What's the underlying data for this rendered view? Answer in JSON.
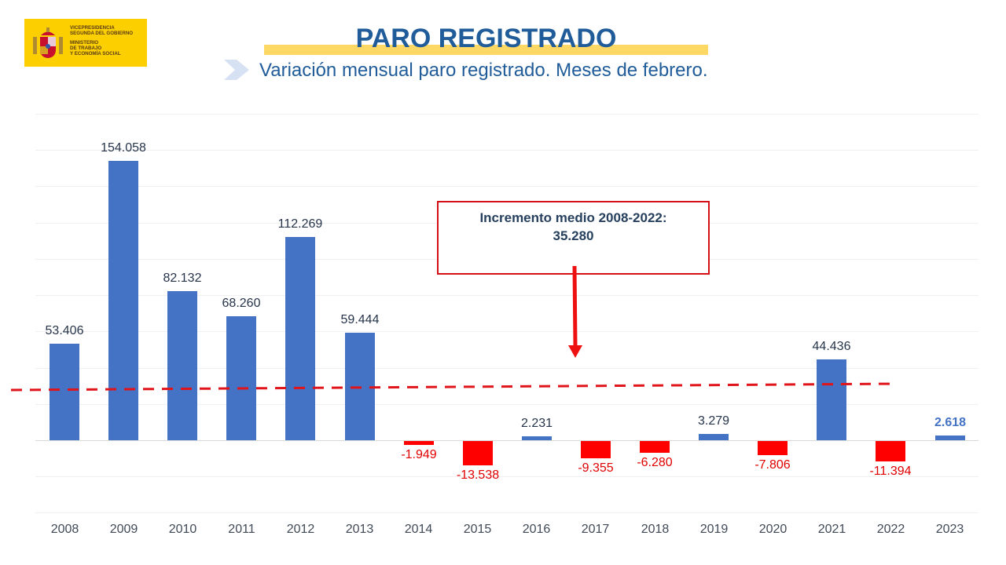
{
  "logo": {
    "line1": "VICEPRESIDENCIA",
    "line2": "SEGUNDA DEL GOBIERNO",
    "line3": "MINISTERIO",
    "line4": "DE TRABAJO",
    "line5": "Y ECONOMÍA SOCIAL",
    "color": "#fcd000"
  },
  "header": {
    "title": "PARO REGISTRADO",
    "subtitle": "Variación mensual paro registrado. Meses de febrero."
  },
  "callout": {
    "line1": "Incremento medio 2008-2022:",
    "line2": "35.280"
  },
  "colors": {
    "positive": "#4472c4",
    "negative": "#ff0000",
    "title": "#1f5c99",
    "average_line": "#e0141b"
  },
  "chart_data": {
    "type": "bar",
    "title": "PARO REGISTRADO",
    "subtitle": "Variación mensual paro registrado. Meses de febrero.",
    "xlabel": "",
    "ylabel": "",
    "categories": [
      "2008",
      "2009",
      "2010",
      "2011",
      "2012",
      "2013",
      "2014",
      "2015",
      "2016",
      "2017",
      "2018",
      "2019",
      "2020",
      "2021",
      "2022",
      "2023"
    ],
    "values": [
      53406,
      154058,
      82132,
      68260,
      112269,
      59444,
      -1949,
      -13538,
      2231,
      -9355,
      -6280,
      3279,
      -7806,
      44436,
      -11394,
      2618
    ],
    "labels": [
      "53.406",
      "154.058",
      "82.132",
      "68.260",
      "112.269",
      "59.444",
      "-1.949",
      "-13.538",
      "2.231",
      "-9.355",
      "-6.280",
      "3.279",
      "-7.806",
      "44.436",
      "-11.394",
      "2.618"
    ],
    "ylim": [
      -40000,
      180000
    ],
    "grid": true,
    "legend": null,
    "annotations": [
      {
        "type": "average_line",
        "label": "Incremento medio 2008-2022: 35.280",
        "value": 35280,
        "style": "dashed red",
        "range": [
          "2008",
          "2022"
        ]
      },
      {
        "type": "highlight",
        "category": "2023",
        "style": "bold blue label"
      }
    ]
  }
}
